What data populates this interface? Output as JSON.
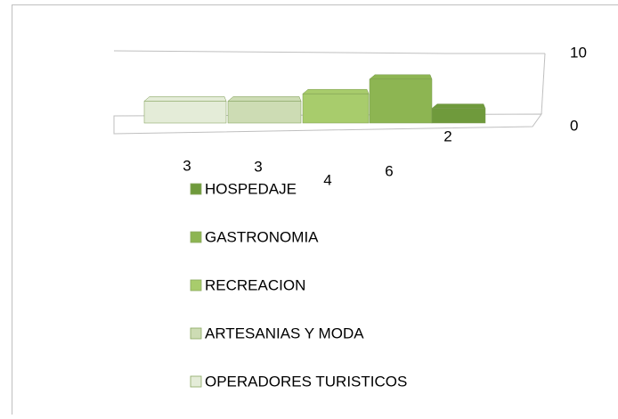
{
  "chart_data": {
    "type": "bar",
    "series": [
      {
        "name": "OPERADORES TURISTICOS",
        "color": "#e4ecd8",
        "values": [
          3
        ]
      },
      {
        "name": "ARTESANIAS Y MODA",
        "color": "#cddcb4",
        "values": [
          3
        ]
      },
      {
        "name": "RECREACION",
        "color": "#a8cc6c",
        "values": [
          4
        ]
      },
      {
        "name": "GASTRONOMIA",
        "color": "#8db552",
        "values": [
          6
        ]
      },
      {
        "name": "HOSPEDAJE",
        "color": "#6f9a3c",
        "values": [
          2
        ]
      }
    ],
    "ylim": [
      0,
      10
    ],
    "yticks": [
      0,
      10
    ]
  }
}
